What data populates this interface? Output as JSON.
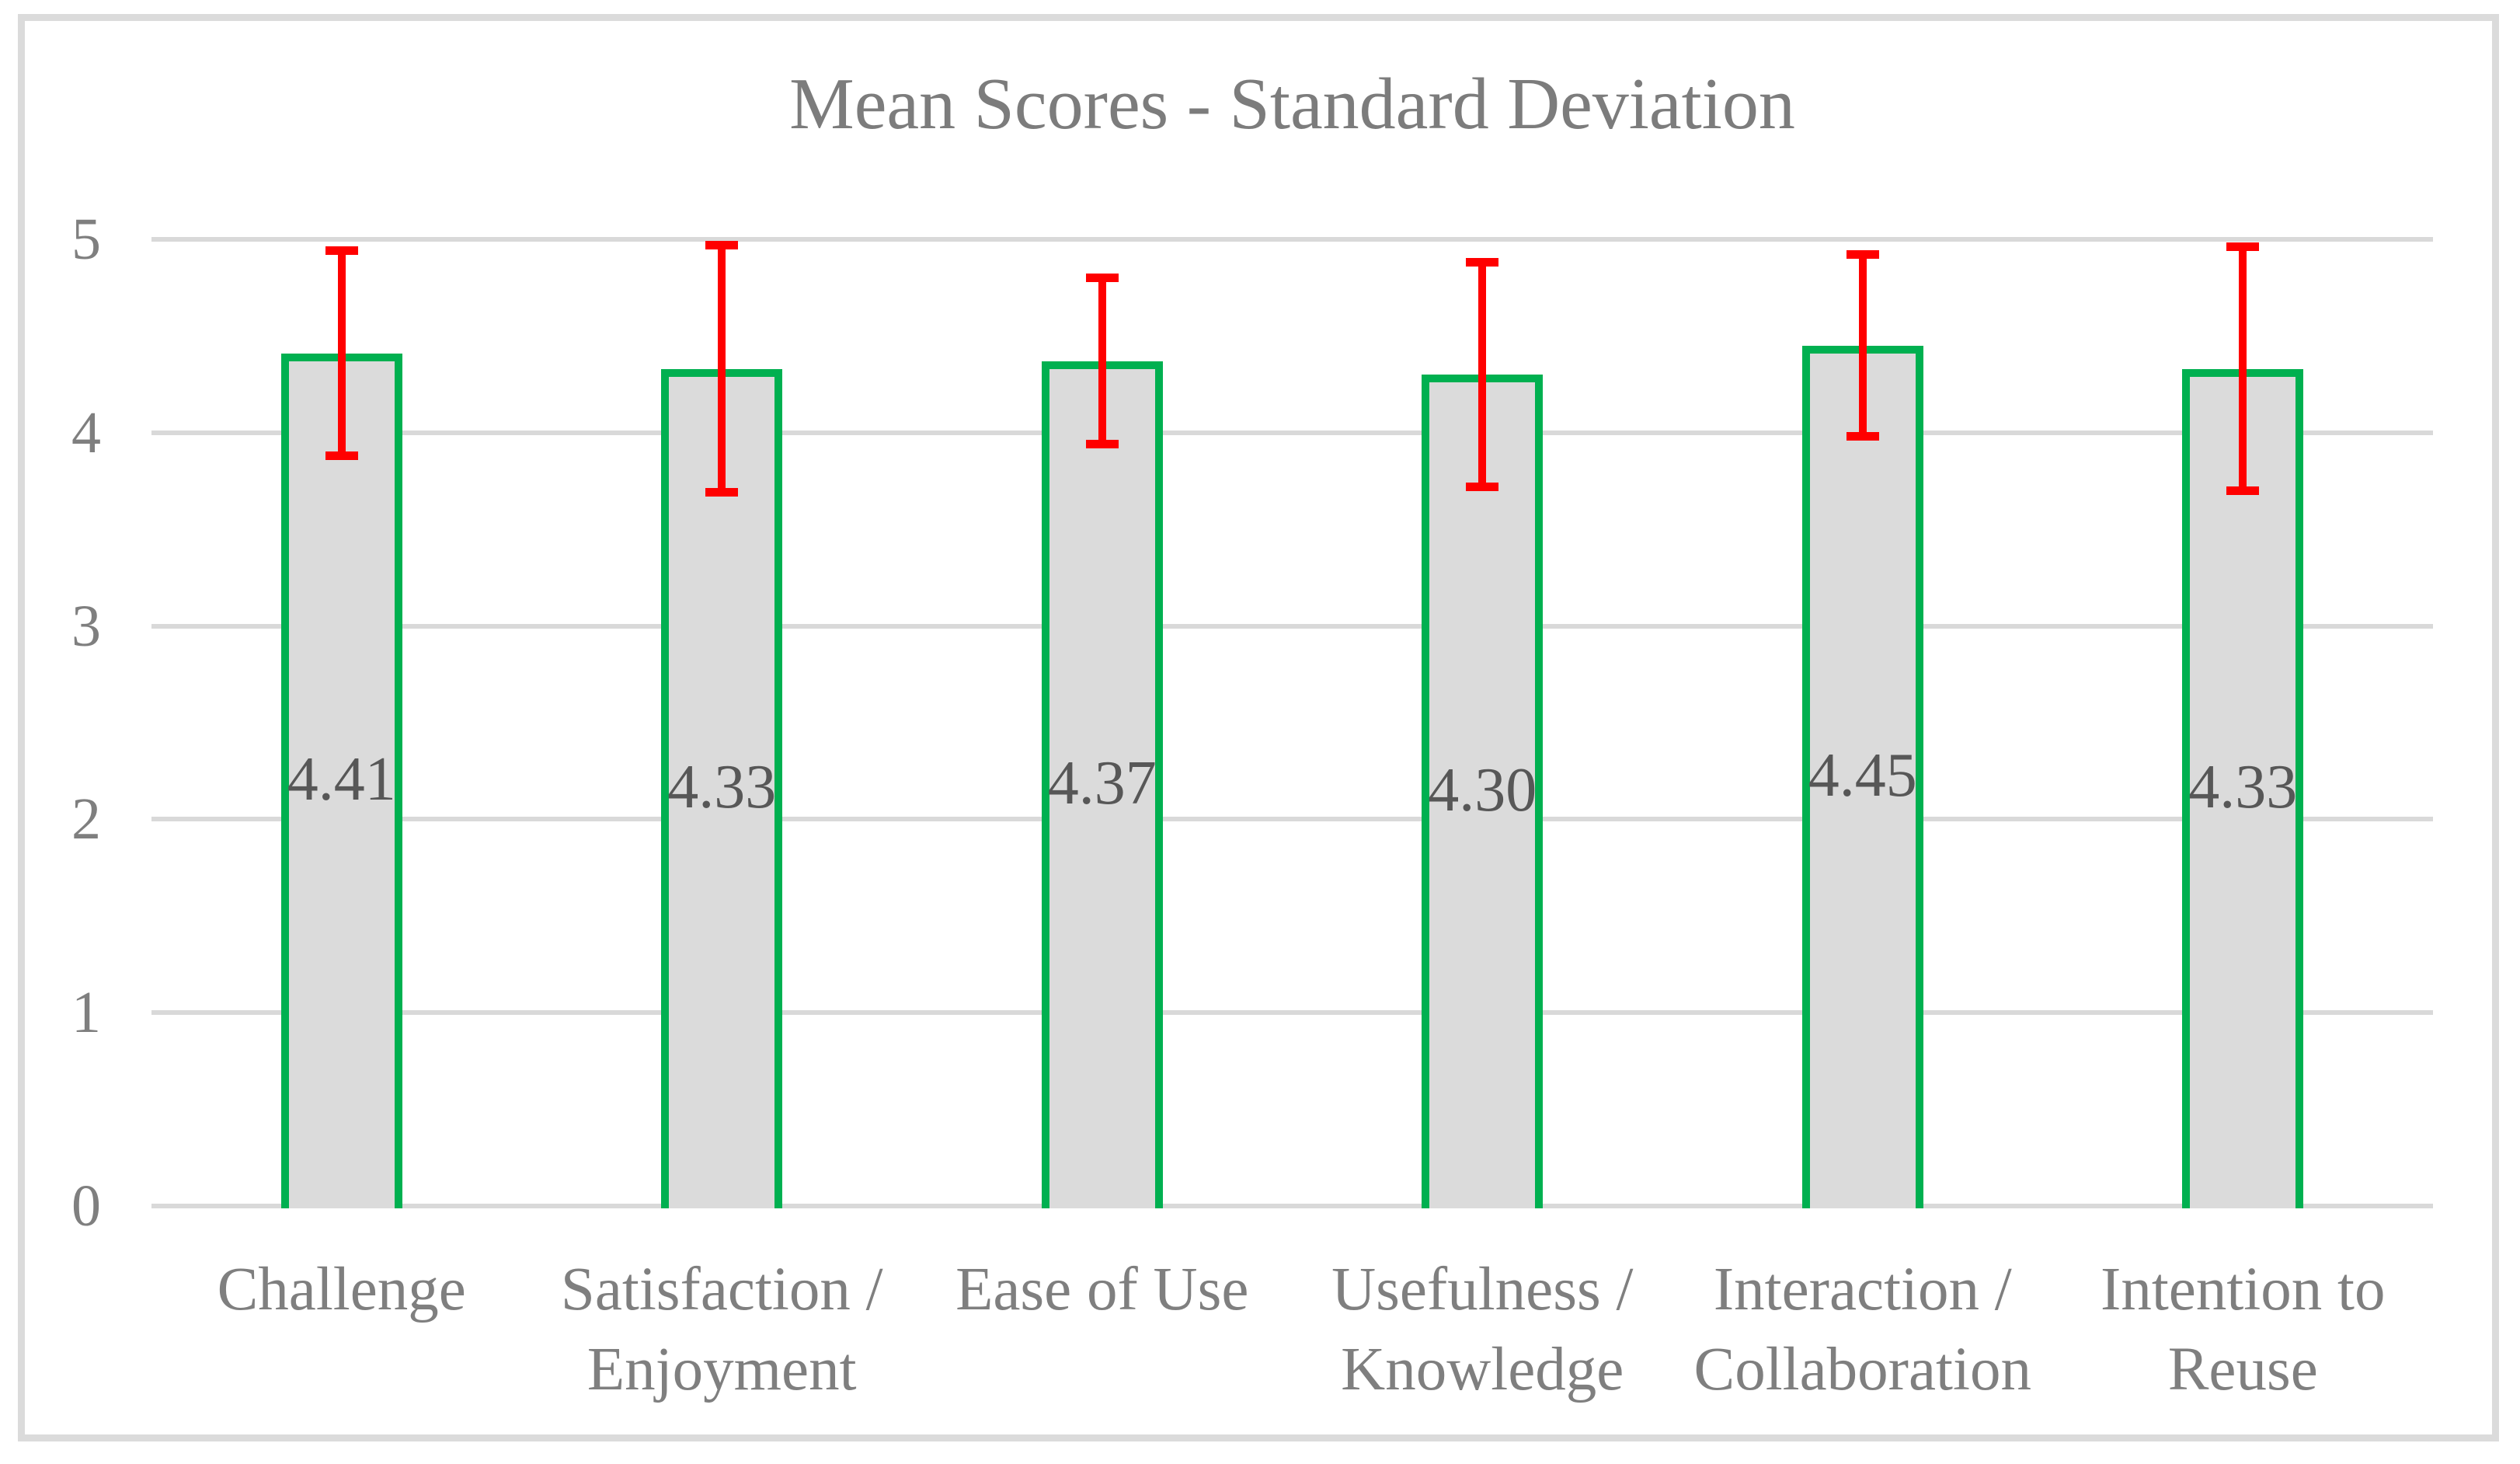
{
  "chart_data": {
    "type": "bar",
    "title": "Mean Scores - Standard Deviation",
    "categories": [
      "Challenge",
      "Satisfaction / Enjoyment",
      "Ease of Use",
      "Usefulness / Knowledge",
      "Interaction / Collaboration",
      "Intention to Reuse"
    ],
    "category_lines": [
      [
        "Challenge"
      ],
      [
        "Satisfaction /",
        "Enjoyment"
      ],
      [
        "Ease of Use"
      ],
      [
        "Usefulness /",
        "Knowledge"
      ],
      [
        "Interaction /",
        "Collaboration"
      ],
      [
        "Intention to",
        "Reuse"
      ]
    ],
    "series": [
      {
        "name": "Mean Score",
        "values": [
          4.41,
          4.33,
          4.37,
          4.3,
          4.45,
          4.33
        ],
        "value_labels": [
          "4.41",
          "4.33",
          "4.37",
          "4.30",
          "4.45",
          "4.33"
        ],
        "std_dev": [
          0.53,
          0.64,
          0.43,
          0.58,
          0.47,
          0.63
        ]
      }
    ],
    "xlabel": "",
    "ylabel": "",
    "y_ticks": [
      0,
      1,
      2,
      3,
      4,
      5
    ],
    "ylim": [
      0,
      5
    ],
    "grid": true,
    "legend": false,
    "error_bars": "standard deviation, plus/minus, red with caps",
    "colors": {
      "bar_fill": "#DBDBDB",
      "bar_border": "#00B050",
      "error_bar": "#FF0000",
      "gridline": "#D9D9D9",
      "title_text": "#7C7C7C",
      "axis_text": "#7F7F7F",
      "value_label_text": "#575757",
      "figure_border": "#DBDBDB",
      "background": "#FFFFFF"
    }
  }
}
